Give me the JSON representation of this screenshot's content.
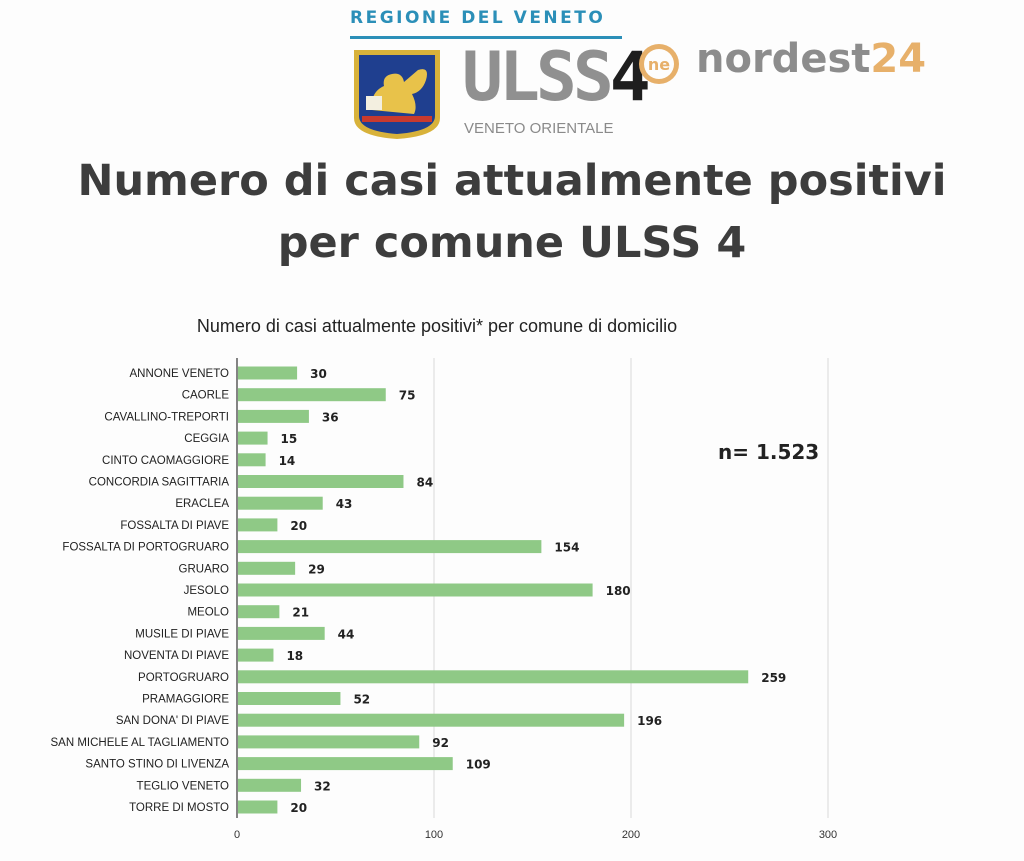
{
  "header": {
    "region": "REGIONE DEL VENETO",
    "ulss_main": "ULSS",
    "ulss_num": "4",
    "ulss_sub": "VENETO ORIENTALE",
    "site_logo_mark": "ne",
    "site_name_text": "nordest",
    "site_name_num": "24"
  },
  "title": {
    "line1": "Numero di casi attualmente positivi",
    "line2": "per comune ULSS 4"
  },
  "colors": {
    "bar": "#8fc986",
    "grid": "#d9d9d9",
    "axis": "#333333"
  },
  "chart_data": {
    "type": "bar",
    "orientation": "horizontal",
    "title": "Numero di casi attualmente positivi* per comune di domicilio",
    "annotation": "n= 1.523",
    "xlim": [
      0,
      300
    ],
    "xticks": [
      0,
      100,
      200,
      300
    ],
    "grid": true,
    "categories": [
      "ANNONE VENETO",
      "CAORLE",
      "CAVALLINO-TREPORTI",
      "CEGGIA",
      "CINTO CAOMAGGIORE",
      "CONCORDIA SAGITTARIA",
      "ERACLEA",
      "FOSSALTA DI PIAVE",
      "FOSSALTA DI PORTOGRUARO",
      "GRUARO",
      "JESOLO",
      "MEOLO",
      "MUSILE DI PIAVE",
      "NOVENTA DI PIAVE",
      "PORTOGRUARO",
      "PRAMAGGIORE",
      "SAN DONA' DI PIAVE",
      "SAN MICHELE AL TAGLIAMENTO",
      "SANTO STINO DI LIVENZA",
      "TEGLIO VENETO",
      "TORRE DI MOSTO"
    ],
    "values": [
      30,
      75,
      36,
      15,
      14,
      84,
      43,
      20,
      154,
      29,
      180,
      21,
      44,
      18,
      259,
      52,
      196,
      92,
      109,
      32,
      20
    ]
  }
}
